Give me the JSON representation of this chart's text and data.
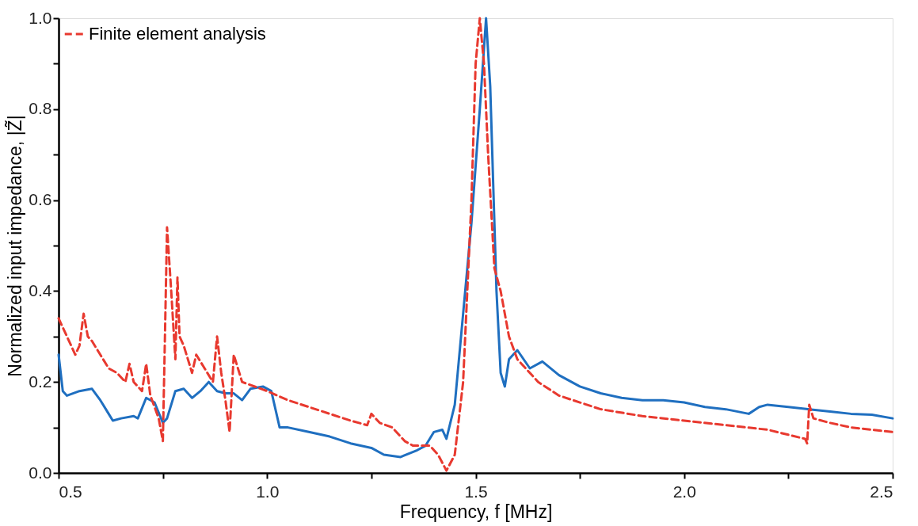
{
  "chart_data": {
    "type": "line",
    "xlabel": "Frequency, f [MHz]",
    "ylabel": "Normalized input impedance, |Z̃|",
    "xlim": [
      0.5,
      2.5
    ],
    "ylim": [
      0,
      1.0
    ],
    "xticks": [
      0.5,
      {
        "value": 0.75,
        "label": null
      },
      {
        "value": 1.0,
        "label": "1.0"
      },
      {
        "value": 1.25,
        "label": null
      },
      1.5,
      {
        "value": 1.75,
        "label": null
      },
      {
        "value": 2.0,
        "label": "2.0"
      },
      {
        "value": 2.25,
        "label": null
      },
      2.5
    ],
    "yticks": [
      {
        "value": 0,
        "label": "0.0"
      },
      {
        "value": 0.1,
        "label": null
      },
      0.2,
      {
        "value": 0.3,
        "label": null
      },
      0.4,
      {
        "value": 0.5,
        "label": null
      },
      0.6,
      {
        "value": 0.7,
        "label": null
      },
      0.8,
      {
        "value": 0.9,
        "label": null
      },
      {
        "value": 1.0,
        "label": "1.0"
      }
    ],
    "grid": false,
    "legend": "top left",
    "series": [
      {
        "color": "#1f6fc0",
        "line_style": "solid",
        "x": [
          0.5,
          0.51,
          0.52,
          0.55,
          0.58,
          0.6,
          0.62,
          0.63,
          0.65,
          0.68,
          0.69,
          0.71,
          0.73,
          0.75,
          0.76,
          0.78,
          0.8,
          0.82,
          0.84,
          0.86,
          0.88,
          0.9,
          0.92,
          0.94,
          0.96,
          0.99,
          1.01,
          1.03,
          1.05,
          1.1,
          1.15,
          1.2,
          1.25,
          1.28,
          1.32,
          1.36,
          1.38,
          1.4,
          1.42,
          1.43,
          1.45,
          1.47,
          1.49,
          1.51,
          1.525,
          1.535,
          1.55,
          1.56,
          1.57,
          1.58,
          1.6,
          1.63,
          1.66,
          1.7,
          1.75,
          1.8,
          1.85,
          1.9,
          1.95,
          2.0,
          2.05,
          2.1,
          2.155,
          2.18,
          2.2,
          2.25,
          2.3,
          2.35,
          2.4,
          2.45,
          2.5
        ],
        "values": [
          0.26,
          0.18,
          0.17,
          0.18,
          0.185,
          0.16,
          0.13,
          0.115,
          0.12,
          0.125,
          0.12,
          0.165,
          0.155,
          0.11,
          0.12,
          0.18,
          0.185,
          0.165,
          0.18,
          0.2,
          0.18,
          0.175,
          0.175,
          0.16,
          0.185,
          0.19,
          0.18,
          0.1,
          0.1,
          0.09,
          0.08,
          0.065,
          0.055,
          0.04,
          0.035,
          0.05,
          0.06,
          0.09,
          0.095,
          0.075,
          0.15,
          0.35,
          0.55,
          0.8,
          1.0,
          0.85,
          0.4,
          0.22,
          0.19,
          0.25,
          0.27,
          0.23,
          0.245,
          0.215,
          0.19,
          0.175,
          0.165,
          0.16,
          0.16,
          0.155,
          0.145,
          0.14,
          0.13,
          0.145,
          0.15,
          0.145,
          0.14,
          0.135,
          0.13,
          0.128,
          0.12
        ]
      },
      {
        "name": "Finite element analysis",
        "color": "#e8392f",
        "line_style": "dashed",
        "x": [
          0.5,
          0.52,
          0.54,
          0.55,
          0.56,
          0.57,
          0.58,
          0.6,
          0.62,
          0.64,
          0.66,
          0.67,
          0.68,
          0.7,
          0.71,
          0.72,
          0.74,
          0.75,
          0.755,
          0.76,
          0.77,
          0.78,
          0.785,
          0.79,
          0.8,
          0.82,
          0.83,
          0.85,
          0.87,
          0.88,
          0.89,
          0.9,
          0.91,
          0.92,
          0.94,
          1.0,
          1.05,
          1.1,
          1.15,
          1.2,
          1.24,
          1.25,
          1.27,
          1.3,
          1.33,
          1.35,
          1.37,
          1.39,
          1.41,
          1.43,
          1.45,
          1.47,
          1.49,
          1.5,
          1.51,
          1.52,
          1.53,
          1.545,
          1.56,
          1.58,
          1.6,
          1.65,
          1.7,
          1.8,
          1.9,
          2.0,
          2.1,
          2.2,
          2.29,
          2.295,
          2.3,
          2.31,
          2.35,
          2.4,
          2.45,
          2.5
        ],
        "values": [
          0.34,
          0.3,
          0.26,
          0.28,
          0.35,
          0.3,
          0.29,
          0.26,
          0.23,
          0.22,
          0.2,
          0.24,
          0.2,
          0.18,
          0.24,
          0.17,
          0.12,
          0.07,
          0.3,
          0.54,
          0.4,
          0.25,
          0.43,
          0.3,
          0.28,
          0.22,
          0.26,
          0.23,
          0.2,
          0.3,
          0.22,
          0.16,
          0.09,
          0.26,
          0.2,
          0.18,
          0.16,
          0.145,
          0.13,
          0.115,
          0.105,
          0.13,
          0.11,
          0.1,
          0.07,
          0.06,
          0.06,
          0.06,
          0.04,
          0.005,
          0.04,
          0.2,
          0.6,
          0.9,
          1.0,
          0.9,
          0.7,
          0.45,
          0.4,
          0.3,
          0.25,
          0.2,
          0.17,
          0.14,
          0.125,
          0.115,
          0.105,
          0.095,
          0.075,
          0.065,
          0.15,
          0.12,
          0.11,
          0.1,
          0.095,
          0.09
        ]
      }
    ]
  }
}
